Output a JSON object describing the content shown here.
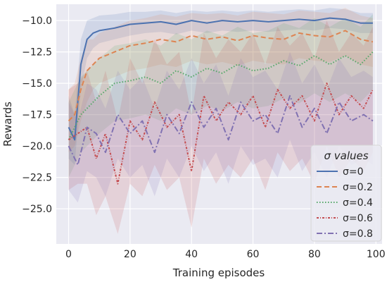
{
  "chart_data": {
    "type": "line",
    "xlabel": "Training episodes",
    "ylabel": "Rewards",
    "xlim": [
      -4,
      102
    ],
    "ylim": [
      -27.8,
      -8.7
    ],
    "xticks": [
      0,
      20,
      40,
      60,
      80,
      100
    ],
    "yticks": [
      -25.0,
      -22.5,
      -20.0,
      -17.5,
      -15.0,
      -12.5,
      -10.0
    ],
    "ytick_labels": [
      "−25.0",
      "−22.5",
      "−20.0",
      "−17.5",
      "−15.0",
      "−12.5",
      "−10.0"
    ],
    "xtick_labels": [
      "0",
      "20",
      "40",
      "60",
      "80",
      "100"
    ],
    "grid": true,
    "legend": {
      "title": "σ values",
      "placement": "bottom-right"
    },
    "series": [
      {
        "name": "σ=0",
        "color": "#4c72b0",
        "style": "solid",
        "x": [
          0,
          2,
          4,
          6,
          8,
          10,
          15,
          20,
          25,
          30,
          35,
          40,
          45,
          50,
          55,
          60,
          65,
          70,
          75,
          80,
          85,
          90,
          95,
          99
        ],
        "y": [
          -18.5,
          -19.5,
          -13.5,
          -11.5,
          -11.0,
          -10.8,
          -10.6,
          -10.3,
          -10.2,
          -10.1,
          -10.3,
          -10.0,
          -10.2,
          -10.0,
          -10.1,
          -10.0,
          -10.1,
          -10.0,
          -9.9,
          -10.0,
          -9.8,
          -9.9,
          -10.2,
          -10.2
        ],
        "band": [
          [
            -21.0,
            -16.0
          ],
          [
            -21.5,
            -17.5
          ],
          [
            -15.5,
            -11.5
          ],
          [
            -13.0,
            -10.0
          ],
          [
            -12.2,
            -9.8
          ],
          [
            -11.8,
            -9.6
          ],
          [
            -11.5,
            -9.5
          ],
          [
            -11.2,
            -9.3
          ],
          [
            -11.0,
            -9.3
          ],
          [
            -10.9,
            -9.2
          ],
          [
            -11.1,
            -9.4
          ],
          [
            -10.8,
            -9.2
          ],
          [
            -11.0,
            -9.3
          ],
          [
            -10.8,
            -9.2
          ],
          [
            -10.9,
            -9.3
          ],
          [
            -10.8,
            -9.2
          ],
          [
            -10.9,
            -9.3
          ],
          [
            -10.8,
            -9.2
          ],
          [
            -10.7,
            -9.1
          ],
          [
            -10.8,
            -9.2
          ],
          [
            -10.6,
            -9.0
          ],
          [
            -10.7,
            -9.1
          ],
          [
            -11.0,
            -9.4
          ],
          [
            -11.0,
            -9.4
          ]
        ]
      },
      {
        "name": "σ=0.2",
        "color": "#dd8452",
        "style": "dashed",
        "x": [
          0,
          2,
          4,
          6,
          8,
          10,
          15,
          20,
          25,
          30,
          35,
          40,
          45,
          50,
          55,
          60,
          65,
          70,
          75,
          80,
          85,
          90,
          95,
          99
        ],
        "y": [
          -18.0,
          -17.5,
          -15.5,
          -14.0,
          -13.5,
          -13.0,
          -12.5,
          -12.0,
          -11.8,
          -11.5,
          -11.7,
          -11.2,
          -11.5,
          -11.3,
          -11.6,
          -11.2,
          -11.4,
          -11.5,
          -11.0,
          -11.2,
          -11.3,
          -10.8,
          -11.5,
          -11.7
        ],
        "band": [
          [
            -20.5,
            -15.5
          ],
          [
            -20.0,
            -15.0
          ],
          [
            -18.0,
            -13.0
          ],
          [
            -16.5,
            -11.5
          ],
          [
            -15.5,
            -11.5
          ],
          [
            -15.0,
            -11.0
          ],
          [
            -14.5,
            -10.5
          ],
          [
            -14.0,
            -10.0
          ],
          [
            -13.8,
            -9.8
          ],
          [
            -13.5,
            -9.5
          ],
          [
            -13.7,
            -9.7
          ],
          [
            -13.2,
            -9.4
          ],
          [
            -13.5,
            -9.5
          ],
          [
            -13.3,
            -9.4
          ],
          [
            -13.6,
            -9.6
          ],
          [
            -13.2,
            -9.3
          ],
          [
            -13.4,
            -9.4
          ],
          [
            -13.5,
            -9.5
          ],
          [
            -13.0,
            -9.2
          ],
          [
            -13.2,
            -9.3
          ],
          [
            -13.3,
            -9.4
          ],
          [
            -12.8,
            -9.0
          ],
          [
            -13.5,
            -9.6
          ],
          [
            -13.7,
            -9.8
          ]
        ]
      },
      {
        "name": "σ=0.4",
        "color": "#55a868",
        "style": "dotted",
        "x": [
          0,
          2,
          4,
          6,
          8,
          10,
          15,
          20,
          25,
          30,
          35,
          40,
          45,
          50,
          55,
          60,
          65,
          70,
          75,
          80,
          85,
          90,
          95,
          99
        ],
        "y": [
          -19.5,
          -18.5,
          -17.5,
          -17.0,
          -16.5,
          -16.0,
          -15.0,
          -14.8,
          -14.5,
          -15.0,
          -14.0,
          -14.5,
          -13.8,
          -14.2,
          -13.5,
          -14.0,
          -13.8,
          -13.2,
          -13.6,
          -12.8,
          -13.5,
          -12.8,
          -13.5,
          -12.5
        ],
        "band": [
          [
            -22.5,
            -16.5
          ],
          [
            -21.5,
            -15.5
          ],
          [
            -20.5,
            -14.5
          ],
          [
            -20.0,
            -14.0
          ],
          [
            -19.5,
            -13.5
          ],
          [
            -19.0,
            -13.0
          ],
          [
            -18.0,
            -12.0
          ],
          [
            -17.8,
            -11.8
          ],
          [
            -17.5,
            -11.5
          ],
          [
            -18.0,
            -12.0
          ],
          [
            -17.0,
            -11.0
          ],
          [
            -17.5,
            -11.5
          ],
          [
            -16.8,
            -10.8
          ],
          [
            -17.2,
            -11.2
          ],
          [
            -16.5,
            -10.5
          ],
          [
            -17.0,
            -11.0
          ],
          [
            -16.8,
            -10.8
          ],
          [
            -16.2,
            -10.2
          ],
          [
            -16.6,
            -10.6
          ],
          [
            -15.8,
            -9.8
          ],
          [
            -16.5,
            -10.5
          ],
          [
            -15.8,
            -9.8
          ],
          [
            -16.5,
            -10.5
          ],
          [
            -15.5,
            -9.5
          ]
        ]
      },
      {
        "name": "σ=0.6",
        "color": "#c44e52",
        "style": "dashdot-dense",
        "x": [
          0,
          3,
          6,
          9,
          12,
          16,
          20,
          24,
          28,
          32,
          36,
          40,
          44,
          48,
          52,
          56,
          60,
          64,
          68,
          72,
          76,
          80,
          84,
          88,
          92,
          96,
          99
        ],
        "y": [
          -19.5,
          -19.0,
          -18.5,
          -21.0,
          -19.0,
          -23.0,
          -18.0,
          -19.5,
          -16.5,
          -18.5,
          -17.5,
          -22.0,
          -16.0,
          -18.0,
          -16.5,
          -17.5,
          -16.0,
          -18.5,
          -15.5,
          -17.0,
          -16.0,
          -18.0,
          -15.0,
          -17.5,
          -16.0,
          -17.0,
          -15.5
        ],
        "band": [
          [
            -23.5,
            -15.5
          ],
          [
            -23.0,
            -15.0
          ],
          [
            -23.0,
            -14.0
          ],
          [
            -25.5,
            -16.5
          ],
          [
            -24.0,
            -14.0
          ],
          [
            -27.0,
            -18.0
          ],
          [
            -23.0,
            -13.0
          ],
          [
            -24.0,
            -15.0
          ],
          [
            -21.5,
            -11.5
          ],
          [
            -23.5,
            -13.5
          ],
          [
            -22.5,
            -12.5
          ],
          [
            -26.5,
            -17.5
          ],
          [
            -21.0,
            -11.0
          ],
          [
            -23.0,
            -13.0
          ],
          [
            -21.5,
            -11.5
          ],
          [
            -22.5,
            -12.5
          ],
          [
            -21.0,
            -11.0
          ],
          [
            -23.5,
            -13.5
          ],
          [
            -20.5,
            -10.5
          ],
          [
            -22.0,
            -12.0
          ],
          [
            -21.0,
            -11.0
          ],
          [
            -23.0,
            -13.0
          ],
          [
            -20.0,
            -10.0
          ],
          [
            -22.5,
            -12.5
          ],
          [
            -21.0,
            -11.0
          ],
          [
            -22.0,
            -12.0
          ],
          [
            -20.5,
            -10.5
          ]
        ]
      },
      {
        "name": "σ=0.8",
        "color": "#8172b2",
        "style": "dashdot",
        "x": [
          0,
          3,
          6,
          9,
          12,
          16,
          20,
          24,
          28,
          32,
          36,
          40,
          44,
          48,
          52,
          56,
          60,
          64,
          68,
          72,
          76,
          80,
          84,
          88,
          92,
          96,
          99
        ],
        "y": [
          -20.0,
          -21.5,
          -18.5,
          -19.0,
          -20.5,
          -17.5,
          -19.0,
          -18.0,
          -20.5,
          -17.5,
          -19.0,
          -16.5,
          -18.5,
          -17.0,
          -19.5,
          -16.5,
          -18.0,
          -17.5,
          -19.0,
          -16.0,
          -18.5,
          -17.0,
          -19.0,
          -16.5,
          -18.0,
          -17.5,
          -18.0
        ],
        "band": [
          [
            -23.5,
            -16.5
          ],
          [
            -24.5,
            -18.0
          ],
          [
            -22.0,
            -15.0
          ],
          [
            -22.5,
            -15.5
          ],
          [
            -24.0,
            -17.0
          ],
          [
            -21.0,
            -14.0
          ],
          [
            -22.5,
            -15.5
          ],
          [
            -21.5,
            -14.5
          ],
          [
            -24.0,
            -17.0
          ],
          [
            -21.0,
            -14.0
          ],
          [
            -22.5,
            -15.5
          ],
          [
            -20.0,
            -13.0
          ],
          [
            -22.0,
            -15.0
          ],
          [
            -20.5,
            -13.5
          ],
          [
            -23.0,
            -16.0
          ],
          [
            -20.0,
            -13.0
          ],
          [
            -21.5,
            -14.5
          ],
          [
            -21.0,
            -14.0
          ],
          [
            -22.5,
            -15.5
          ],
          [
            -19.5,
            -12.5
          ],
          [
            -22.0,
            -15.0
          ],
          [
            -20.5,
            -13.5
          ],
          [
            -22.5,
            -15.5
          ],
          [
            -20.0,
            -13.0
          ],
          [
            -21.5,
            -14.5
          ],
          [
            -21.0,
            -14.0
          ],
          [
            -21.5,
            -14.5
          ]
        ]
      }
    ]
  }
}
